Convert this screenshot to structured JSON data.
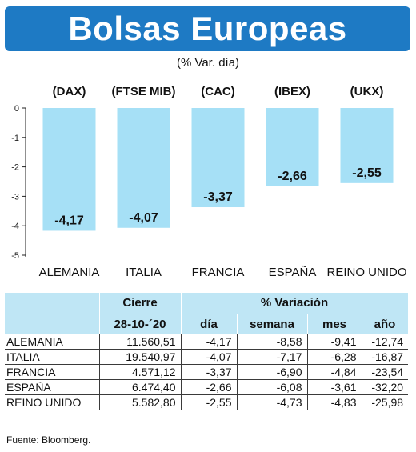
{
  "header": {
    "title": "Bolsas Europeas",
    "subtitle": "(% Var. día)"
  },
  "colors": {
    "banner": "#1e7ac4",
    "bar": "#a6e0f6",
    "table_header": "#bfe6f5"
  },
  "chart_data": {
    "type": "bar",
    "categories": [
      "ALEMANIA",
      "ITALIA",
      "FRANCIA",
      "ESPAÑA",
      "REINO UNIDO"
    ],
    "codes": [
      "(DAX)",
      "(FTSE MIB)",
      "(CAC)",
      "(IBEX)",
      "(UKX)"
    ],
    "values": [
      -4.17,
      -4.07,
      -3.37,
      -2.66,
      -2.55
    ],
    "value_labels": [
      "-4,17",
      "-4,07",
      "-3,37",
      "-2,66",
      "-2,55"
    ],
    "ylim": [
      -5,
      0
    ],
    "yticks": [
      0,
      -1,
      -2,
      -3,
      -4,
      -5
    ],
    "ytick_labels": [
      "0",
      "-1",
      "-2",
      "-3",
      "-4",
      "-5"
    ],
    "grid": false
  },
  "table": {
    "group_headers": [
      "Cierre",
      "% Variación"
    ],
    "columns": [
      "28-10-´20",
      "día",
      "semana",
      "mes",
      "año"
    ],
    "rows": [
      {
        "name": "ALEMANIA",
        "cells": [
          "11.560,51",
          "-4,17",
          "-8,58",
          "-9,41",
          "-12,74"
        ]
      },
      {
        "name": "ITALIA",
        "cells": [
          "19.540,97",
          "-4,07",
          "-7,17",
          "-6,28",
          "-16,87"
        ]
      },
      {
        "name": "FRANCIA",
        "cells": [
          "4.571,12",
          "-3,37",
          "-6,90",
          "-4,84",
          "-23,54"
        ]
      },
      {
        "name": "ESPAÑA",
        "cells": [
          "6.474,40",
          "-2,66",
          "-6,08",
          "-3,61",
          "-32,20"
        ]
      },
      {
        "name": "REINO UNIDO",
        "cells": [
          "5.582,80",
          "-2,55",
          "-4,73",
          "-4,83",
          "-25,98"
        ]
      }
    ]
  },
  "source": "Fuente: Bloomberg."
}
